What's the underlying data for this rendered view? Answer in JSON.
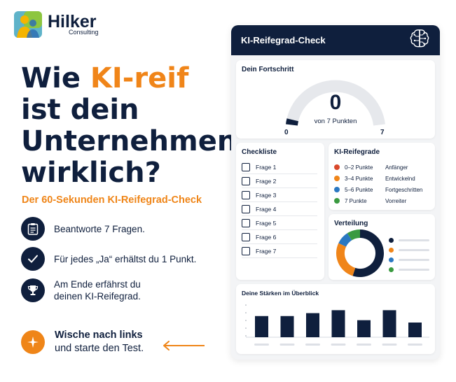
{
  "logo": {
    "name": "Hilker",
    "sub": "Consulting"
  },
  "headline": {
    "line1_pre": "Wie ",
    "line1_accent": "KI-reif",
    "line2": "ist dein",
    "line3": "Unternehmen",
    "line4": "wirklich?"
  },
  "subline": "Der 60-Sekunden KI-Reifegrad-Check",
  "features": [
    {
      "icon": "clipboard-icon",
      "text": "Beantworte 7 Fragen."
    },
    {
      "icon": "check-icon",
      "text": "Für jedes „Ja“ erhältst du 1 Punkt."
    },
    {
      "icon": "trophy-icon",
      "text_line1": "Am Ende erfährst du",
      "text_line2": "deinen KI-Reifegrad."
    }
  ],
  "cta": {
    "bold": "Wische nach links",
    "rest": "und starte den Test."
  },
  "card": {
    "title": "KI-Reifegrad-Check",
    "progress": {
      "title": "Dein Fortschritt",
      "value": "0",
      "label": "von 7 Punkten",
      "min": "0",
      "max": "7",
      "fraction": 0.04
    },
    "checklist": {
      "title": "Checkliste",
      "items": [
        "Frage 1",
        "Frage 2",
        "Frage 3",
        "Frage 4",
        "Frage 5",
        "Frage 6",
        "Frage 7"
      ]
    },
    "levels": {
      "title": "KI-Reifegrade",
      "items": [
        {
          "range": "0–2 Punkte",
          "name": "Anfänger",
          "color": "#d9482b"
        },
        {
          "range": "3–4 Punkte",
          "name": "Entwickelnd",
          "color": "#f08519"
        },
        {
          "range": "5–6 Punkte",
          "name": "Fortgeschritten",
          "color": "#2a78c2"
        },
        {
          "range": "7 Punkte",
          "name": "Vorreiter",
          "color": "#3a9a40"
        }
      ]
    },
    "distribution": {
      "title": "Verteilung",
      "segments": [
        {
          "color": "#0f1f3d",
          "value": 55
        },
        {
          "color": "#f08519",
          "value": 27
        },
        {
          "color": "#2a78c2",
          "value": 9
        },
        {
          "color": "#3a9a40",
          "value": 9
        }
      ]
    },
    "strengths": {
      "title": "Deine Stärken im Überblick",
      "values": [
        0.72,
        0.72,
        0.82,
        0.92,
        0.58,
        0.92,
        0.5
      ]
    }
  }
}
